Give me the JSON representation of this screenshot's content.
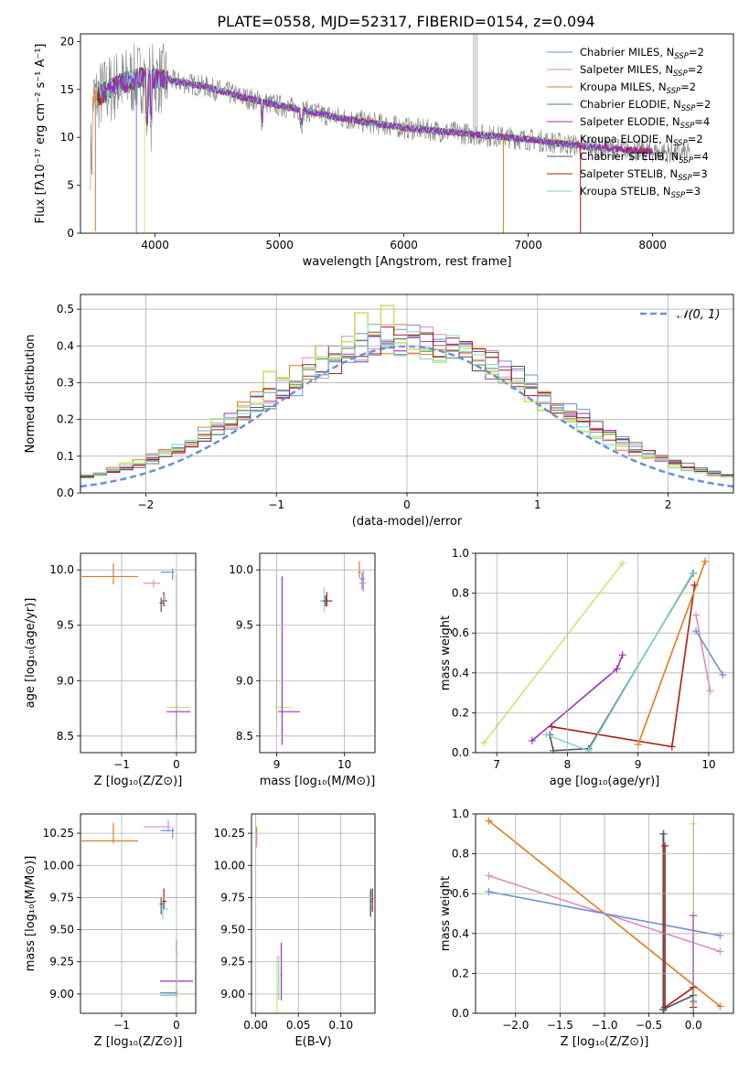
{
  "figure_title": "PLATE=0558, MJD=52317, FIBERID=0154, z=0.094",
  "colors": {
    "chabrier_miles": "#6b8fd6",
    "salpeter_miles": "#e08ac0",
    "kroupa_miles": "#e07c1a",
    "chabrier_elodie": "#4b8f5e",
    "salpeter_elodie": "#9b30b8",
    "kroupa_elodie": "#c8e870",
    "chabrier_stelib": "#555555",
    "salpeter_stelib": "#b01818",
    "kroupa_stelib": "#7fd3d6",
    "data": "#808080",
    "normal": "#6a8fd6",
    "grid": "#b0b0b0"
  },
  "chart_data": [
    {
      "id": "spectrum",
      "type": "line",
      "title": "PLATE=0558, MJD=52317, FIBERID=0154, z=0.094",
      "xlabel": "wavelength [Angstrom, rest frame]",
      "ylabel": "Flux [fλ10⁻¹⁷ erg cm⁻² s⁻¹ A⁻¹]",
      "xlim": [
        3400,
        8650
      ],
      "ylim": [
        0,
        20.8
      ],
      "xticks": [
        4000,
        5000,
        6000,
        7000,
        8000
      ],
      "yticks": [
        0,
        5,
        10,
        15,
        20
      ],
      "grid": false,
      "legend_position": "top-right",
      "legend": [
        {
          "label": "Chabrier MILES, N",
          "sub": "SSP",
          "suffix": "=2",
          "color": "chabrier_miles"
        },
        {
          "label": "Salpeter MILES, N",
          "sub": "SSP",
          "suffix": "=2",
          "color": "salpeter_miles"
        },
        {
          "label": "Kroupa MILES, N",
          "sub": "SSP",
          "suffix": "=2",
          "color": "kroupa_miles"
        },
        {
          "label": "Chabrier ELODIE, N",
          "sub": "SSP",
          "suffix": "=2",
          "color": "chabrier_elodie"
        },
        {
          "label": "Salpeter ELODIE, N",
          "sub": "SSP",
          "suffix": "=4",
          "color": "salpeter_elodie"
        },
        {
          "label": "Kroupa ELODIE, N",
          "sub": "SSP",
          "suffix": "=2",
          "color": "kroupa_elodie"
        },
        {
          "label": "Chabrier STELIB, N",
          "sub": "SSP",
          "suffix": "=4",
          "color": "chabrier_stelib"
        },
        {
          "label": "Salpeter STELIB, N",
          "sub": "SSP",
          "suffix": "=3",
          "color": "salpeter_stelib"
        },
        {
          "label": "Kroupa STELIB, N",
          "sub": "SSP",
          "suffix": "=3",
          "color": "kroupa_stelib"
        }
      ],
      "continuum": [
        [
          3500,
          14.0
        ],
        [
          3700,
          15.5
        ],
        [
          3900,
          16.3
        ],
        [
          4100,
          16.0
        ],
        [
          4400,
          15.3
        ],
        [
          4700,
          14.2
        ],
        [
          5000,
          13.3
        ],
        [
          5500,
          12.0
        ],
        [
          6000,
          11.0
        ],
        [
          6500,
          10.4
        ],
        [
          7000,
          9.8
        ],
        [
          7500,
          9.0
        ],
        [
          8000,
          8.5
        ],
        [
          8300,
          8.3
        ]
      ]
    },
    {
      "id": "residuals",
      "type": "step",
      "xlabel": "(data-model)/error",
      "ylabel": "Normed distribution",
      "xlim": [
        -2.5,
        2.5
      ],
      "ylim": [
        0,
        0.54
      ],
      "xticks": [
        -2,
        -1,
        0,
        1,
        2
      ],
      "yticks": [
        0.0,
        0.1,
        0.2,
        0.3,
        0.4,
        0.5
      ],
      "grid": true,
      "legend_position": "top-right",
      "legend_label": "𝒩(0, 1)",
      "bin_width": 0.1,
      "series_colors": [
        "chabrier_miles",
        "salpeter_miles",
        "kroupa_miles",
        "chabrier_elodie",
        "salpeter_elodie",
        "kroupa_elodie",
        "chabrier_stelib",
        "salpeter_stelib",
        "kroupa_stelib"
      ],
      "highlight": [
        {
          "x": -1.05,
          "height": 0.33,
          "color": "kroupa_elodie"
        },
        {
          "x": -0.35,
          "height": 0.49,
          "color": "kroupa_elodie"
        },
        {
          "x": -0.15,
          "height": 0.51,
          "color": "kroupa_elodie"
        },
        {
          "x": -0.55,
          "height": 0.4,
          "color": "salpeter_elodie"
        },
        {
          "x": 0.05,
          "height": 0.43,
          "color": "salpeter_stelib"
        }
      ]
    },
    {
      "id": "age-vs-Z",
      "type": "errorbar",
      "xlabel": "Z [log₁₀(Z/Z⊙)]",
      "ylabel": "age  [log₁₀(age/yr)]",
      "xlim": [
        -1.75,
        0.35
      ],
      "ylim": [
        8.35,
        10.15
      ],
      "xticks": [
        -1,
        0
      ],
      "yticks": [
        8.5,
        9.0,
        9.5,
        10.0
      ],
      "grid": true,
      "points": [
        {
          "x": -1.15,
          "y": 9.94,
          "xerr": [
            0.58,
            0.45
          ],
          "yerr": [
            0.07,
            0.12
          ],
          "color": "kroupa_miles"
        },
        {
          "x": -0.42,
          "y": 9.88,
          "xerr": [
            0.18,
            0.12
          ],
          "yerr": [
            0.04,
            0.03
          ],
          "color": "salpeter_miles"
        },
        {
          "x": -0.07,
          "y": 9.98,
          "xerr": [
            0.22,
            0.03
          ],
          "yerr": [
            0.07,
            0.03
          ],
          "color": "chabrier_miles"
        },
        {
          "x": -0.23,
          "y": 9.72,
          "xerr": [
            0.04,
            0.06
          ],
          "yerr": [
            0.05,
            0.08
          ],
          "color": "salpeter_stelib"
        },
        {
          "x": -0.28,
          "y": 9.7,
          "xerr": [
            0.03,
            0.05
          ],
          "yerr": [
            0.08,
            0.05
          ],
          "color": "chabrier_stelib"
        },
        {
          "x": -0.22,
          "y": 9.74,
          "xerr": [
            0.03,
            0.03
          ],
          "yerr": [
            0.04,
            0.04
          ],
          "color": "kroupa_stelib"
        },
        {
          "x": 0.0,
          "y": 8.76,
          "xerr": [
            0.18,
            0.25
          ],
          "yerr": [
            0.02,
            1.2
          ],
          "color": "kroupa_elodie"
        },
        {
          "x": 0.0,
          "y": 8.72,
          "xerr": [
            0.18,
            0.25
          ],
          "yerr": [
            0.25,
            0.02
          ],
          "color": "salpeter_elodie"
        },
        {
          "x": 0.0,
          "y": 8.76,
          "xerr": [
            0.02,
            0.02
          ],
          "yerr": [
            0.02,
            1.2
          ],
          "color": "kroupa_stelib"
        }
      ]
    },
    {
      "id": "age-vs-mass",
      "type": "errorbar",
      "xlabel": "mass [log₁₀(M/M⊙)]",
      "ylabel": "",
      "xlim": [
        8.75,
        10.45
      ],
      "ylim": [
        8.35,
        10.15
      ],
      "xticks": [
        9,
        10
      ],
      "yticks": [
        8.5,
        9.0,
        9.5,
        10.0
      ],
      "grid": true,
      "points": [
        {
          "x": 10.22,
          "y": 9.98,
          "xerr": [
            0.02,
            0.02
          ],
          "yerr": [
            0.05,
            0.1
          ],
          "color": "kroupa_miles"
        },
        {
          "x": 10.28,
          "y": 9.88,
          "xerr": [
            0.06,
            0.04
          ],
          "yerr": [
            0.08,
            0.12
          ],
          "color": "salpeter_miles"
        },
        {
          "x": 10.26,
          "y": 9.92,
          "xerr": [
            0.04,
            0.04
          ],
          "yerr": [
            0.1,
            0.06
          ],
          "color": "chabrier_miles"
        },
        {
          "x": 9.74,
          "y": 9.72,
          "xerr": [
            0.1,
            0.08
          ],
          "yerr": [
            0.05,
            0.08
          ],
          "color": "salpeter_stelib"
        },
        {
          "x": 9.7,
          "y": 9.72,
          "xerr": [
            0.06,
            0.04
          ],
          "yerr": [
            0.1,
            0.12
          ],
          "color": "kroupa_stelib"
        },
        {
          "x": 9.72,
          "y": 9.72,
          "xerr": [
            0.04,
            0.04
          ],
          "yerr": [
            0.05,
            0.05
          ],
          "color": "chabrier_stelib"
        },
        {
          "x": 9.0,
          "y": 8.76,
          "xerr": [
            0.02,
            0.22
          ],
          "yerr": [
            0.14,
            1.2
          ],
          "color": "kroupa_elodie"
        },
        {
          "x": 9.08,
          "y": 8.72,
          "xerr": [
            0.06,
            0.26
          ],
          "yerr": [
            0.3,
            1.22
          ],
          "color": "salpeter_elodie"
        }
      ]
    },
    {
      "id": "mass-weight-vs-age",
      "type": "line",
      "xlabel": "age  [log₁₀(age/yr)]",
      "ylabel": "mass weight",
      "xlim": [
        6.7,
        10.35
      ],
      "ylim": [
        0,
        1
      ],
      "xticks": [
        7,
        8,
        9,
        10
      ],
      "yticks": [
        0.0,
        0.2,
        0.4,
        0.6,
        0.8,
        1.0
      ],
      "grid": true,
      "series": [
        {
          "color": "kroupa_elodie",
          "x": [
            6.82,
            8.78
          ],
          "y": [
            0.05,
            0.95
          ]
        },
        {
          "color": "salpeter_elodie",
          "x": [
            7.5,
            8.7,
            8.78
          ],
          "y": [
            0.06,
            0.42,
            0.49
          ]
        },
        {
          "color": "chabrier_stelib",
          "x": [
            7.75,
            7.8,
            8.3,
            9.78
          ],
          "y": [
            0.09,
            0.01,
            0.02,
            0.9
          ]
        },
        {
          "color": "salpeter_stelib",
          "x": [
            7.78,
            9.48,
            9.8
          ],
          "y": [
            0.13,
            0.03,
            0.84
          ]
        },
        {
          "color": "kroupa_stelib",
          "x": [
            7.7,
            8.3,
            9.77
          ],
          "y": [
            0.09,
            0.01,
            0.9
          ]
        },
        {
          "color": "kroupa_miles",
          "x": [
            9.0,
            9.95
          ],
          "y": [
            0.04,
            0.96
          ]
        },
        {
          "color": "salpeter_miles",
          "x": [
            9.82,
            10.02
          ],
          "y": [
            0.69,
            0.31
          ]
        },
        {
          "color": "chabrier_miles",
          "x": [
            9.82,
            10.2
          ],
          "y": [
            0.61,
            0.39
          ]
        }
      ]
    },
    {
      "id": "mass-vs-Z",
      "type": "errorbar",
      "xlabel": "Z [log₁₀(Z/Z⊙)]",
      "ylabel": "mass [log₁₀(M/M⊙)]",
      "xlim": [
        -1.75,
        0.35
      ],
      "ylim": [
        8.85,
        10.4
      ],
      "xticks": [
        -1,
        0
      ],
      "yticks": [
        9.0,
        9.25,
        9.5,
        9.75,
        10.0,
        10.25
      ],
      "grid": true,
      "points": [
        {
          "x": -1.15,
          "y": 10.19,
          "xerr": [
            0.58,
            0.45
          ],
          "yerr": [
            0.02,
            0.14
          ],
          "color": "kroupa_miles"
        },
        {
          "x": -0.15,
          "y": 10.3,
          "xerr": [
            0.45,
            0.05
          ],
          "yerr": [
            0.04,
            0.05
          ],
          "color": "salpeter_miles"
        },
        {
          "x": -0.07,
          "y": 10.27,
          "xerr": [
            0.22,
            0.03
          ],
          "yerr": [
            0.06,
            0.02
          ],
          "color": "chabrier_miles"
        },
        {
          "x": -0.23,
          "y": 9.72,
          "xerr": [
            0.03,
            0.05
          ],
          "yerr": [
            0.06,
            0.1
          ],
          "color": "salpeter_stelib"
        },
        {
          "x": -0.28,
          "y": 9.7,
          "xerr": [
            0.03,
            0.05
          ],
          "yerr": [
            0.08,
            0.05
          ],
          "color": "chabrier_stelib"
        },
        {
          "x": -0.25,
          "y": 9.66,
          "xerr": [
            0.05,
            0.1
          ],
          "yerr": [
            0.08,
            0.05
          ],
          "color": "kroupa_stelib"
        },
        {
          "x": 0.0,
          "y": 9.1,
          "xerr": [
            0.3,
            0.3
          ],
          "yerr": [
            0.1,
            0.32
          ],
          "color": "salpeter_elodie"
        },
        {
          "x": 0.0,
          "y": 9.0,
          "xerr": [
            0.25,
            0.3
          ],
          "yerr": [
            0.1,
            0.3
          ],
          "color": "kroupa_elodie"
        },
        {
          "x": 0.0,
          "y": 9.01,
          "xerr": [
            0.3,
            0.02
          ],
          "yerr": [
            0.02,
            0.02
          ],
          "color": "chabrier_miles"
        },
        {
          "x": 0.0,
          "y": 8.99,
          "xerr": [
            0.3,
            0.02
          ],
          "yerr": [
            0.02,
            0.02
          ],
          "color": "kroupa_stelib"
        }
      ]
    },
    {
      "id": "mass-vs-ebv",
      "type": "errorbar",
      "xlabel": "E(B-V)",
      "ylabel": "",
      "xlim": [
        -0.005,
        0.14
      ],
      "ylim": [
        8.85,
        10.4
      ],
      "xticks": [
        0.0,
        0.05,
        0.1
      ],
      "xtick_labels": [
        "0.00",
        "0.05",
        "0.10"
      ],
      "yticks": [
        9.0,
        9.25,
        9.5,
        9.75,
        10.0,
        10.25
      ],
      "grid": true,
      "points": [
        {
          "x": 0.001,
          "y": 10.22,
          "xerr": [
            0.001,
            0.001
          ],
          "yerr": [
            0.05,
            0.08
          ],
          "color": "kroupa_miles"
        },
        {
          "x": 0.001,
          "y": 10.2,
          "xerr": [
            0.001,
            0.001
          ],
          "yerr": [
            0.06,
            0.05
          ],
          "color": "salpeter_miles"
        },
        {
          "x": 0.025,
          "y": 9.05,
          "xerr": [
            0.001,
            0.001
          ],
          "yerr": [
            0.2,
            0.25
          ],
          "color": "kroupa_elodie"
        },
        {
          "x": 0.03,
          "y": 9.15,
          "xerr": [
            0.001,
            0.001
          ],
          "yerr": [
            0.2,
            0.25
          ],
          "color": "salpeter_elodie"
        },
        {
          "x": 0.027,
          "y": 9.1,
          "xerr": [
            0.001,
            0.001
          ],
          "yerr": [
            0.15,
            0.2
          ],
          "color": "kroupa_stelib"
        },
        {
          "x": 0.135,
          "y": 9.72,
          "xerr": [
            0.001,
            0.001
          ],
          "yerr": [
            0.12,
            0.1
          ],
          "color": "chabrier_stelib"
        },
        {
          "x": 0.137,
          "y": 9.74,
          "xerr": [
            0.001,
            0.001
          ],
          "yerr": [
            0.1,
            0.08
          ],
          "color": "salpeter_stelib"
        },
        {
          "x": 0.134,
          "y": 9.7,
          "xerr": [
            0.001,
            0.001
          ],
          "yerr": [
            0.1,
            0.1
          ],
          "color": "kroupa_stelib"
        }
      ]
    },
    {
      "id": "mass-weight-vs-Z",
      "type": "line",
      "xlabel": "Z [log₁₀(Z/Z⊙)]",
      "ylabel": "mass weight",
      "xlim": [
        -2.45,
        0.45
      ],
      "ylim": [
        0,
        1
      ],
      "xticks": [
        -2.0,
        -1.5,
        -1.0,
        -0.5,
        0.0
      ],
      "xtick_labels": [
        "−2.0",
        "−1.5",
        "−1.0",
        "−0.5",
        "0.0"
      ],
      "yticks": [
        0.0,
        0.2,
        0.4,
        0.6,
        0.8,
        1.0
      ],
      "grid": true,
      "series": [
        {
          "color": "kroupa_miles",
          "x": [
            -2.3,
            0.3
          ],
          "y": [
            0.965,
            0.035
          ]
        },
        {
          "color": "salpeter_miles",
          "x": [
            -2.3,
            0.3
          ],
          "y": [
            0.69,
            0.31
          ]
        },
        {
          "color": "chabrier_miles",
          "x": [
            -2.3,
            0.3
          ],
          "y": [
            0.61,
            0.39
          ]
        },
        {
          "color": "kroupa_stelib",
          "x": [
            -0.33,
            -0.33
          ],
          "y": [
            0.01,
            0.9
          ]
        },
        {
          "color": "chabrier_stelib",
          "x": [
            -0.34,
            -0.34
          ],
          "y": [
            0.02,
            0.9
          ]
        },
        {
          "color": "salpeter_stelib",
          "x": [
            -0.32,
            -0.32
          ],
          "y": [
            0.03,
            0.84
          ]
        },
        {
          "color": "kroupa_elodie",
          "x": [
            0.0,
            0.0
          ],
          "y": [
            0.05,
            0.95
          ]
        },
        {
          "color": "salpeter_elodie",
          "x": [
            0.0,
            0.0
          ],
          "y": [
            0.06,
            0.49
          ]
        },
        {
          "color": "salpeter_stelib",
          "x": [
            -0.32,
            0.0,
            0.0
          ],
          "y": [
            0.03,
            0.13,
            0.03
          ]
        },
        {
          "color": "chabrier_stelib",
          "x": [
            -0.34,
            0.0,
            0.0
          ],
          "y": [
            0.02,
            0.09,
            0.0
          ]
        }
      ]
    }
  ]
}
